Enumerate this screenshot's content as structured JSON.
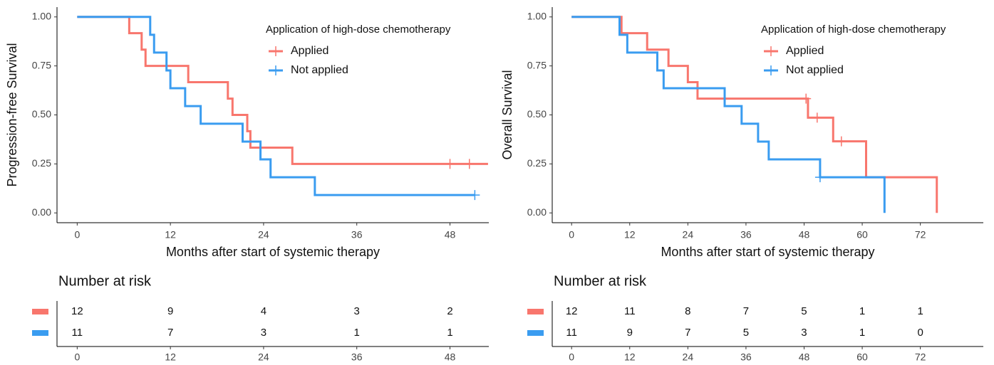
{
  "chart_data": [
    {
      "type": "survival",
      "x_label": "Months after start of systemic therapy",
      "y_label": "Progression-free Survival",
      "legend_title": "Application of high-dose chemotherapy",
      "xlim": [
        -2.6,
        53
      ],
      "xticks": [
        0,
        12,
        24,
        36,
        48
      ],
      "ylim": [
        -0.05,
        1.05
      ],
      "yticks": [
        {
          "value": 0,
          "label": "0.00"
        },
        {
          "value": 0.25,
          "label": "0.25"
        },
        {
          "value": 0.5,
          "label": "0.50"
        },
        {
          "value": 0.75,
          "label": "0.75"
        },
        {
          "value": 1,
          "label": "1.00"
        }
      ],
      "series": [
        {
          "name": "Applied",
          "color": "#f8766d",
          "x": [
            0,
            6.7,
            8.3,
            8.8,
            14.3,
            19.4,
            20,
            21.9,
            22.3,
            27.7,
            52.9
          ],
          "values": [
            1,
            0.917,
            0.833,
            0.75,
            0.667,
            0.583,
            0.5,
            0.417,
            0.333,
            0.25,
            0.25
          ],
          "censor_x": [
            48,
            50.5
          ],
          "censor_values": [
            0.25,
            0.25
          ]
        },
        {
          "name": "Not applied",
          "color": "#3a9cf0",
          "x": [
            0,
            9.4,
            9.9,
            11.5,
            12,
            13.9,
            15.9,
            21.3,
            23.6,
            24.9,
            30.6,
            51.2
          ],
          "values": [
            1,
            0.909,
            0.818,
            0.727,
            0.636,
            0.545,
            0.455,
            0.364,
            0.273,
            0.182,
            0.091,
            0.091
          ],
          "censor_x": [
            51.2
          ],
          "censor_values": [
            0.091
          ]
        }
      ],
      "risk_table": {
        "title": "Number at risk",
        "times": [
          0,
          12,
          24,
          36,
          48
        ],
        "counts": [
          [
            12,
            9,
            4,
            3,
            2
          ],
          [
            11,
            7,
            3,
            1,
            1
          ]
        ]
      }
    },
    {
      "type": "survival",
      "x_label": "Months after start of systemic therapy",
      "y_label": "Overall Survival",
      "legend_title": "Application of high-dose chemotherapy",
      "xlim": [
        -4,
        85
      ],
      "xticks": [
        0,
        12,
        24,
        36,
        48,
        60,
        72
      ],
      "ylim": [
        -0.05,
        1.05
      ],
      "yticks": [
        {
          "value": 0,
          "label": "0.00"
        },
        {
          "value": 0.25,
          "label": "0.25"
        },
        {
          "value": 0.5,
          "label": "0.50"
        },
        {
          "value": 0.75,
          "label": "0.75"
        },
        {
          "value": 1,
          "label": "1.00"
        }
      ],
      "series": [
        {
          "name": "Applied",
          "color": "#f8766d",
          "x": [
            0,
            10.3,
            15.6,
            20,
            24,
            26,
            48.8,
            54,
            60.8,
            75.4
          ],
          "values": [
            1,
            0.917,
            0.833,
            0.75,
            0.667,
            0.583,
            0.486,
            0.365,
            0.182,
            0
          ],
          "censor_x": [
            48.4,
            50.7,
            55.7
          ],
          "censor_values": [
            0.583,
            0.486,
            0.365
          ]
        },
        {
          "name": "Not applied",
          "color": "#3a9cf0",
          "x": [
            0,
            9.9,
            11.5,
            17.7,
            19,
            31.6,
            35.1,
            38.5,
            40.7,
            51.3,
            64.6
          ],
          "values": [
            1,
            0.909,
            0.818,
            0.727,
            0.636,
            0.545,
            0.455,
            0.364,
            0.273,
            0.182,
            0
          ],
          "censor_x": [
            51.3
          ],
          "censor_values": [
            0.182
          ]
        }
      ],
      "risk_table": {
        "title": "Number at risk",
        "times": [
          0,
          12,
          24,
          36,
          48,
          60,
          72
        ],
        "counts": [
          [
            12,
            11,
            8,
            7,
            5,
            1,
            1
          ],
          [
            11,
            9,
            7,
            5,
            3,
            1,
            0
          ]
        ]
      }
    }
  ]
}
